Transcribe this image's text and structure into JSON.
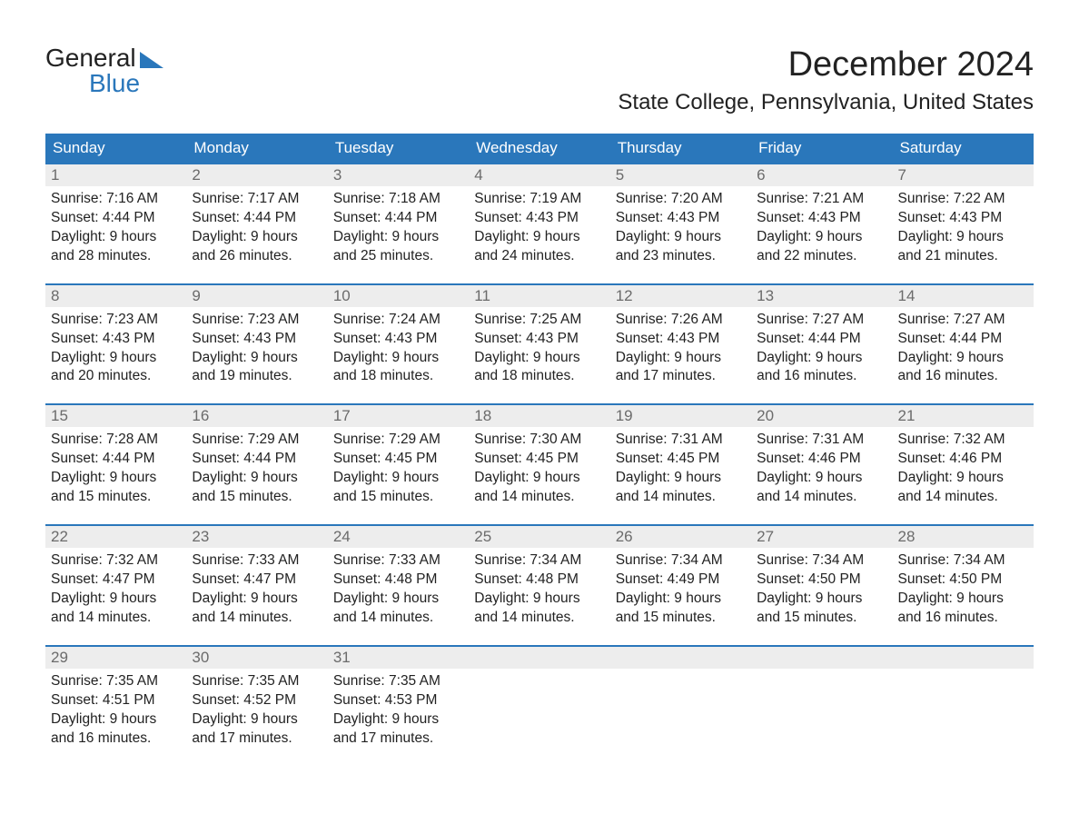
{
  "logo": {
    "word1": "General",
    "word2": "Blue"
  },
  "title": "December 2024",
  "location": "State College, Pennsylvania, United States",
  "colors": {
    "header_bg": "#2a77bb",
    "header_text": "#ffffff",
    "daynum_bg": "#ededed",
    "daynum_text": "#6b6b6b",
    "rule": "#2a77bb",
    "body_text": "#222222",
    "page_bg": "#ffffff"
  },
  "day_names": [
    "Sunday",
    "Monday",
    "Tuesday",
    "Wednesday",
    "Thursday",
    "Friday",
    "Saturday"
  ],
  "weeks": [
    [
      {
        "n": "1",
        "sunrise": "Sunrise: 7:16 AM",
        "sunset": "Sunset: 4:44 PM",
        "d1": "Daylight: 9 hours",
        "d2": "and 28 minutes."
      },
      {
        "n": "2",
        "sunrise": "Sunrise: 7:17 AM",
        "sunset": "Sunset: 4:44 PM",
        "d1": "Daylight: 9 hours",
        "d2": "and 26 minutes."
      },
      {
        "n": "3",
        "sunrise": "Sunrise: 7:18 AM",
        "sunset": "Sunset: 4:44 PM",
        "d1": "Daylight: 9 hours",
        "d2": "and 25 minutes."
      },
      {
        "n": "4",
        "sunrise": "Sunrise: 7:19 AM",
        "sunset": "Sunset: 4:43 PM",
        "d1": "Daylight: 9 hours",
        "d2": "and 24 minutes."
      },
      {
        "n": "5",
        "sunrise": "Sunrise: 7:20 AM",
        "sunset": "Sunset: 4:43 PM",
        "d1": "Daylight: 9 hours",
        "d2": "and 23 minutes."
      },
      {
        "n": "6",
        "sunrise": "Sunrise: 7:21 AM",
        "sunset": "Sunset: 4:43 PM",
        "d1": "Daylight: 9 hours",
        "d2": "and 22 minutes."
      },
      {
        "n": "7",
        "sunrise": "Sunrise: 7:22 AM",
        "sunset": "Sunset: 4:43 PM",
        "d1": "Daylight: 9 hours",
        "d2": "and 21 minutes."
      }
    ],
    [
      {
        "n": "8",
        "sunrise": "Sunrise: 7:23 AM",
        "sunset": "Sunset: 4:43 PM",
        "d1": "Daylight: 9 hours",
        "d2": "and 20 minutes."
      },
      {
        "n": "9",
        "sunrise": "Sunrise: 7:23 AM",
        "sunset": "Sunset: 4:43 PM",
        "d1": "Daylight: 9 hours",
        "d2": "and 19 minutes."
      },
      {
        "n": "10",
        "sunrise": "Sunrise: 7:24 AM",
        "sunset": "Sunset: 4:43 PM",
        "d1": "Daylight: 9 hours",
        "d2": "and 18 minutes."
      },
      {
        "n": "11",
        "sunrise": "Sunrise: 7:25 AM",
        "sunset": "Sunset: 4:43 PM",
        "d1": "Daylight: 9 hours",
        "d2": "and 18 minutes."
      },
      {
        "n": "12",
        "sunrise": "Sunrise: 7:26 AM",
        "sunset": "Sunset: 4:43 PM",
        "d1": "Daylight: 9 hours",
        "d2": "and 17 minutes."
      },
      {
        "n": "13",
        "sunrise": "Sunrise: 7:27 AM",
        "sunset": "Sunset: 4:44 PM",
        "d1": "Daylight: 9 hours",
        "d2": "and 16 minutes."
      },
      {
        "n": "14",
        "sunrise": "Sunrise: 7:27 AM",
        "sunset": "Sunset: 4:44 PM",
        "d1": "Daylight: 9 hours",
        "d2": "and 16 minutes."
      }
    ],
    [
      {
        "n": "15",
        "sunrise": "Sunrise: 7:28 AM",
        "sunset": "Sunset: 4:44 PM",
        "d1": "Daylight: 9 hours",
        "d2": "and 15 minutes."
      },
      {
        "n": "16",
        "sunrise": "Sunrise: 7:29 AM",
        "sunset": "Sunset: 4:44 PM",
        "d1": "Daylight: 9 hours",
        "d2": "and 15 minutes."
      },
      {
        "n": "17",
        "sunrise": "Sunrise: 7:29 AM",
        "sunset": "Sunset: 4:45 PM",
        "d1": "Daylight: 9 hours",
        "d2": "and 15 minutes."
      },
      {
        "n": "18",
        "sunrise": "Sunrise: 7:30 AM",
        "sunset": "Sunset: 4:45 PM",
        "d1": "Daylight: 9 hours",
        "d2": "and 14 minutes."
      },
      {
        "n": "19",
        "sunrise": "Sunrise: 7:31 AM",
        "sunset": "Sunset: 4:45 PM",
        "d1": "Daylight: 9 hours",
        "d2": "and 14 minutes."
      },
      {
        "n": "20",
        "sunrise": "Sunrise: 7:31 AM",
        "sunset": "Sunset: 4:46 PM",
        "d1": "Daylight: 9 hours",
        "d2": "and 14 minutes."
      },
      {
        "n": "21",
        "sunrise": "Sunrise: 7:32 AM",
        "sunset": "Sunset: 4:46 PM",
        "d1": "Daylight: 9 hours",
        "d2": "and 14 minutes."
      }
    ],
    [
      {
        "n": "22",
        "sunrise": "Sunrise: 7:32 AM",
        "sunset": "Sunset: 4:47 PM",
        "d1": "Daylight: 9 hours",
        "d2": "and 14 minutes."
      },
      {
        "n": "23",
        "sunrise": "Sunrise: 7:33 AM",
        "sunset": "Sunset: 4:47 PM",
        "d1": "Daylight: 9 hours",
        "d2": "and 14 minutes."
      },
      {
        "n": "24",
        "sunrise": "Sunrise: 7:33 AM",
        "sunset": "Sunset: 4:48 PM",
        "d1": "Daylight: 9 hours",
        "d2": "and 14 minutes."
      },
      {
        "n": "25",
        "sunrise": "Sunrise: 7:34 AM",
        "sunset": "Sunset: 4:48 PM",
        "d1": "Daylight: 9 hours",
        "d2": "and 14 minutes."
      },
      {
        "n": "26",
        "sunrise": "Sunrise: 7:34 AM",
        "sunset": "Sunset: 4:49 PM",
        "d1": "Daylight: 9 hours",
        "d2": "and 15 minutes."
      },
      {
        "n": "27",
        "sunrise": "Sunrise: 7:34 AM",
        "sunset": "Sunset: 4:50 PM",
        "d1": "Daylight: 9 hours",
        "d2": "and 15 minutes."
      },
      {
        "n": "28",
        "sunrise": "Sunrise: 7:34 AM",
        "sunset": "Sunset: 4:50 PM",
        "d1": "Daylight: 9 hours",
        "d2": "and 16 minutes."
      }
    ],
    [
      {
        "n": "29",
        "sunrise": "Sunrise: 7:35 AM",
        "sunset": "Sunset: 4:51 PM",
        "d1": "Daylight: 9 hours",
        "d2": "and 16 minutes."
      },
      {
        "n": "30",
        "sunrise": "Sunrise: 7:35 AM",
        "sunset": "Sunset: 4:52 PM",
        "d1": "Daylight: 9 hours",
        "d2": "and 17 minutes."
      },
      {
        "n": "31",
        "sunrise": "Sunrise: 7:35 AM",
        "sunset": "Sunset: 4:53 PM",
        "d1": "Daylight: 9 hours",
        "d2": "and 17 minutes."
      },
      null,
      null,
      null,
      null
    ]
  ]
}
